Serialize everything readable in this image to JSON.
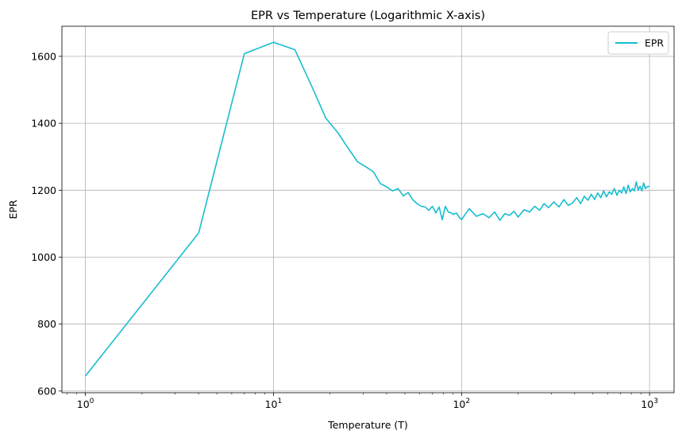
{
  "chart_data": {
    "type": "line",
    "title": "EPR vs Temperature (Logarithmic X-axis)",
    "xlabel": "Temperature (T)",
    "ylabel": "EPR",
    "x_scale": "log",
    "xlim": [
      0.75,
      1350
    ],
    "ylim": [
      595,
      1690
    ],
    "grid": true,
    "legend_position": "top-right",
    "x_ticks": [
      {
        "value": 1,
        "base": "10",
        "exp": "0"
      },
      {
        "value": 10,
        "base": "10",
        "exp": "1"
      },
      {
        "value": 100,
        "base": "10",
        "exp": "2"
      },
      {
        "value": 1000,
        "base": "10",
        "exp": "3"
      }
    ],
    "y_ticks": [
      {
        "value": 600,
        "label": "600"
      },
      {
        "value": 800,
        "label": "800"
      },
      {
        "value": 1000,
        "label": "1000"
      },
      {
        "value": 1200,
        "label": "1200"
      },
      {
        "value": 1400,
        "label": "1400"
      },
      {
        "value": 1600,
        "label": "1600"
      }
    ],
    "series": [
      {
        "name": "EPR",
        "color": "#17becf",
        "x": [
          1,
          4,
          7,
          10,
          13,
          16,
          19,
          22,
          25,
          28,
          31,
          34,
          37,
          40,
          43,
          46,
          49,
          52,
          55,
          58,
          61,
          64,
          67,
          70,
          73,
          76,
          79,
          82,
          85,
          88,
          91,
          94,
          97,
          100,
          110,
          120,
          130,
          140,
          150,
          160,
          170,
          180,
          190,
          200,
          215,
          230,
          245,
          260,
          275,
          290,
          310,
          330,
          350,
          370,
          390,
          410,
          430,
          450,
          470,
          490,
          510,
          530,
          550,
          570,
          590,
          610,
          630,
          650,
          670,
          690,
          710,
          730,
          750,
          770,
          790,
          810,
          830,
          850,
          870,
          890,
          910,
          930,
          950,
          970,
          1000
        ],
        "y": [
          645,
          1072,
          1608,
          1642,
          1620,
          1510,
          1415,
          1372,
          1325,
          1285,
          1270,
          1255,
          1220,
          1210,
          1198,
          1205,
          1183,
          1193,
          1172,
          1160,
          1152,
          1150,
          1140,
          1152,
          1132,
          1150,
          1112,
          1152,
          1135,
          1132,
          1128,
          1132,
          1120,
          1112,
          1145,
          1122,
          1130,
          1118,
          1135,
          1110,
          1130,
          1125,
          1137,
          1120,
          1142,
          1135,
          1152,
          1140,
          1160,
          1148,
          1165,
          1150,
          1172,
          1155,
          1162,
          1178,
          1160,
          1182,
          1170,
          1188,
          1172,
          1192,
          1178,
          1198,
          1180,
          1195,
          1188,
          1205,
          1185,
          1200,
          1192,
          1210,
          1190,
          1215,
          1195,
          1205,
          1198,
          1225,
          1200,
          1212,
          1198,
          1222,
          1205,
          1210,
          1212
        ]
      }
    ]
  }
}
